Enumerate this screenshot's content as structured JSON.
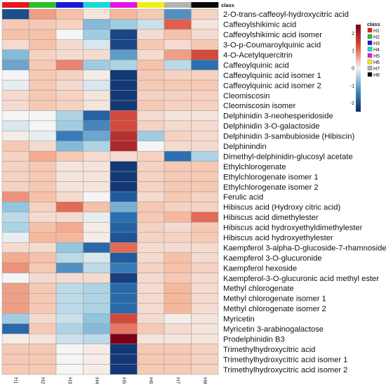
{
  "chart_data": {
    "type": "heatmap",
    "title": "",
    "class_label": "class",
    "columns": [
      "H1",
      "H2",
      "H3",
      "H4",
      "H5",
      "H6",
      "H7",
      "H8"
    ],
    "class_colors": [
      "#e8191c",
      "#2bbf2b",
      "#1a1ad6",
      "#19d8d8",
      "#e314e3",
      "#f0f014",
      "#b3b3b3",
      "#0a0a0a"
    ],
    "rows": [
      "2-O-trans-caffeoyl-hydroxycitric acid",
      "Caffeoylshikimic acid",
      "Caffeoylshikimic acid isomer",
      "3-O-p-Coumaroylquinic acid",
      "4-O-Acetylquercitrin",
      "Caffeoylquinic acid",
      "Caffeoylquinic acid isomer 1",
      "Caffeoylquinic acid isomer 2",
      "Cleomiscosin",
      "Cleomiscosin isomer",
      "Delphinidin 3-neohesperidoside",
      "Delphinidin 3-O-galactoside",
      "Delphinidin 3-sambubioside (Hibiscin)",
      "Delphinindin",
      "Dimethyl-delphinidin-glucosyl acetate",
      "Ethylchlorogenate",
      "Ethylchlorogenate isomer 1",
      "Ethylchlorogenate isomer 2",
      "Ferulic acid",
      "Hibiscus acid (Hydroxy citric acid)",
      "Hibiscus acid dimethylester",
      "Hibiscus acid hydroxyethyldimethylester",
      "Hibiscus acid hydroxyethylester",
      "Kaempferol 3-alpha-D-glucoside-7-rhamnoside",
      "Kaempferol 3-O-glucuronide",
      "Kaempferol hexoside",
      "Kaempferol-3-O-glucuronic acid methyl ester",
      "Methyl chlorogenate",
      "Methyl chlorogenate isomer 1",
      "Methyl chlorogenate isomer 2",
      "Myricetin",
      "Myricetin 3-arabinogalactose",
      "Prodelphinidin B3",
      "Trimethylhydroxycitric acid",
      "Trimethylhydroxycitric acid isomer 1",
      "Trimethylhydroxycitric acid isomer 2"
    ],
    "values": [
      [
        -2.0,
        0.9,
        0.6,
        0.2,
        0.7,
        0.5,
        -1.2,
        0.4
      ],
      [
        0.5,
        0.5,
        0.4,
        -0.8,
        -0.6,
        -0.3,
        1.4,
        0.2
      ],
      [
        0.6,
        0.6,
        0.0,
        -0.6,
        -2.1,
        0.3,
        0.6,
        0.3
      ],
      [
        0.3,
        0.6,
        0.3,
        -0.2,
        -2.1,
        0.5,
        0.3,
        0.5
      ],
      [
        -0.8,
        0.4,
        0.3,
        0.3,
        -1.1,
        0.3,
        0.9,
        1.6
      ],
      [
        -1.0,
        0.5,
        1.1,
        -0.6,
        -0.5,
        0.6,
        -0.4,
        -1.5
      ],
      [
        0.0,
        0.5,
        0.4,
        0.1,
        -2.3,
        0.5,
        0.4,
        0.4
      ],
      [
        -0.1,
        0.5,
        0.3,
        -0.2,
        -2.3,
        0.5,
        0.5,
        0.5
      ],
      [
        0.3,
        0.5,
        0.4,
        0.2,
        -2.3,
        0.4,
        0.4,
        0.4
      ],
      [
        0.3,
        0.5,
        0.4,
        0.2,
        -2.3,
        0.5,
        0.4,
        0.4
      ],
      [
        0.0,
        0.0,
        -0.5,
        -1.7,
        1.6,
        0.3,
        0.2,
        0.2
      ],
      [
        -0.2,
        0.0,
        -0.6,
        -1.3,
        1.6,
        0.4,
        0.3,
        0.3
      ],
      [
        0.1,
        -0.1,
        -1.4,
        -1.0,
        1.9,
        -0.6,
        0.4,
        0.3
      ],
      [
        0.5,
        0.3,
        -0.8,
        -0.5,
        2.0,
        0.0,
        0.3,
        0.3
      ],
      [
        0.4,
        0.8,
        0.5,
        0.3,
        0.3,
        0.4,
        -1.5,
        -0.5
      ],
      [
        0.4,
        0.5,
        0.2,
        0.2,
        -2.3,
        0.4,
        0.5,
        0.5
      ],
      [
        0.4,
        0.5,
        0.2,
        0.2,
        -2.3,
        0.4,
        0.5,
        0.5
      ],
      [
        0.4,
        0.5,
        0.2,
        0.2,
        -2.3,
        0.4,
        0.5,
        0.5
      ],
      [
        1.0,
        0.6,
        0.3,
        0.0,
        -1.8,
        0.3,
        0.5,
        0.4
      ],
      [
        -0.7,
        0.4,
        1.3,
        0.6,
        -0.9,
        0.5,
        0.4,
        0.4
      ],
      [
        -0.4,
        0.3,
        0.3,
        -0.1,
        -1.5,
        0.5,
        0.7,
        1.3
      ],
      [
        -0.5,
        0.6,
        0.8,
        0.1,
        -1.7,
        0.4,
        0.3,
        0.5
      ],
      [
        -0.1,
        0.7,
        0.7,
        0.1,
        -1.9,
        0.4,
        0.4,
        0.5
      ],
      [
        0.3,
        0.3,
        -0.7,
        -1.6,
        1.3,
        0.3,
        0.3,
        0.3
      ],
      [
        0.8,
        0.6,
        -0.4,
        -0.2,
        -1.8,
        0.3,
        0.6,
        0.3
      ],
      [
        1.0,
        0.5,
        -1.2,
        -0.4,
        -1.4,
        0.4,
        0.6,
        0.4
      ],
      [
        0.0,
        0.3,
        0.3,
        0.3,
        -2.2,
        0.3,
        0.5,
        0.3
      ],
      [
        0.9,
        0.5,
        -0.4,
        -0.5,
        -1.6,
        0.3,
        0.7,
        0.3
      ],
      [
        0.9,
        0.5,
        -0.4,
        -0.5,
        -1.6,
        0.3,
        0.7,
        0.3
      ],
      [
        0.9,
        0.5,
        -0.4,
        -0.5,
        -1.6,
        0.3,
        0.7,
        0.3
      ],
      [
        -0.6,
        0.3,
        -0.3,
        -0.7,
        1.6,
        0.3,
        0.1,
        0.2
      ],
      [
        -1.6,
        0.5,
        -0.5,
        -0.8,
        1.2,
        0.5,
        0.3,
        0.2
      ],
      [
        0.1,
        0.2,
        -0.3,
        -0.4,
        2.5,
        0.2,
        0.2,
        0.2
      ],
      [
        0.5,
        0.5,
        0.0,
        0.1,
        -2.3,
        0.5,
        0.5,
        0.4
      ],
      [
        0.5,
        0.5,
        0.0,
        0.1,
        -2.3,
        0.5,
        0.5,
        0.4
      ],
      [
        0.5,
        0.5,
        0.0,
        0.1,
        -2.3,
        0.5,
        0.5,
        0.4
      ]
    ],
    "color_scale": {
      "min": -2.5,
      "max": 2.5,
      "ticks": [
        2,
        1,
        0,
        -1,
        -2
      ],
      "low_color": "#0c2a66",
      "mid_color": "#f5f5f5",
      "high_color": "#7b0018"
    },
    "legend": {
      "title": "class",
      "entries": [
        "H1",
        "H2",
        "H3",
        "H4",
        "H5",
        "H6",
        "H7",
        "H8"
      ],
      "placement": "right"
    }
  }
}
